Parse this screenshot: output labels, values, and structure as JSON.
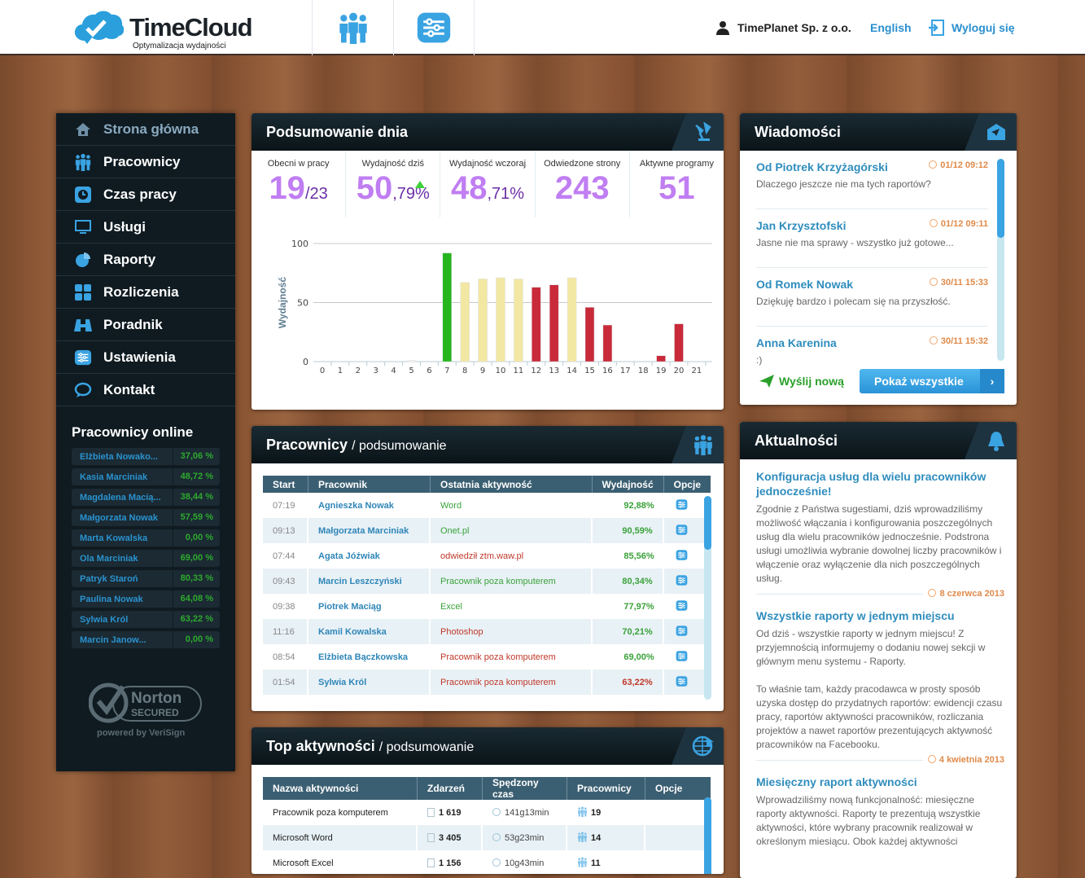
{
  "header": {
    "logo_title": "TimeCloud",
    "logo_subtitle": "Optymalizacja wydajności",
    "company": "TimePlanet Sp. z o.o.",
    "language": "English",
    "logout": "Wyloguj się"
  },
  "sidebar": {
    "items": [
      {
        "label": "Strona główna",
        "icon": "home-icon"
      },
      {
        "label": "Pracownicy",
        "icon": "people-icon"
      },
      {
        "label": "Czas pracy",
        "icon": "clock-icon"
      },
      {
        "label": "Usługi",
        "icon": "monitor-icon"
      },
      {
        "label": "Raporty",
        "icon": "pie-chart-icon"
      },
      {
        "label": "Rozliczenia",
        "icon": "calculator-icon"
      },
      {
        "label": "Poradnik",
        "icon": "binoculars-icon"
      },
      {
        "label": "Ustawienia",
        "icon": "sliders-icon"
      },
      {
        "label": "Kontakt",
        "icon": "chat-icon"
      }
    ],
    "online_title": "Pracownicy online",
    "online": [
      {
        "name": "Elżbieta Nowako...",
        "value": "37,06 %"
      },
      {
        "name": "Kasia Marciniak",
        "value": "48,72 %"
      },
      {
        "name": "Magdalena Macią...",
        "value": "38,44 %"
      },
      {
        "name": "Małgorzata Nowak",
        "value": "57,59 %"
      },
      {
        "name": "Marta Kowalska",
        "value": "0,00 %"
      },
      {
        "name": "Ola Marciniak",
        "value": "69,00 %"
      },
      {
        "name": "Patryk Staroń",
        "value": "80,33 %"
      },
      {
        "name": "Paulina Nowak",
        "value": "64,08 %"
      },
      {
        "name": "Sylwia Król",
        "value": "63,22 %"
      },
      {
        "name": "Marcin Janow...",
        "value": "0,00 %"
      }
    ],
    "norton": "Norton SECURED powered by VeriSign"
  },
  "summary": {
    "title": "Podsumowanie dnia",
    "stats": [
      {
        "label": "Obecni w pracy",
        "big": "19",
        "small": "/23"
      },
      {
        "label": "Wydajność dziś",
        "big": "50",
        "small": ",79%"
      },
      {
        "label": "Wydajność wczoraj",
        "big": "48",
        "small": ",71%"
      },
      {
        "label": "Odwiedzone strony",
        "big": "243",
        "small": ""
      },
      {
        "label": "Aktywne programy",
        "big": "51",
        "small": ""
      }
    ]
  },
  "chart_data": {
    "type": "bar",
    "ylabel": "Wydajność",
    "xlabel": "",
    "ylim": [
      0,
      100
    ],
    "yticks": [
      "0",
      "50",
      "100"
    ],
    "grid": true,
    "categories": [
      "0",
      "1",
      "2",
      "3",
      "4",
      "5",
      "6",
      "7",
      "8",
      "9",
      "10",
      "11",
      "12",
      "13",
      "14",
      "15",
      "16",
      "17",
      "18",
      "19",
      "20",
      "21"
    ],
    "values": [
      0,
      0,
      0,
      0,
      0,
      1,
      0,
      92,
      67,
      70,
      71,
      70,
      63,
      65,
      71,
      46,
      31,
      0,
      0,
      5,
      32,
      0
    ],
    "colors": [
      "#fff",
      "#fff",
      "#fff",
      "#fff",
      "#fff",
      "#f4f4f4",
      "#fff",
      "#25b51e",
      "#f3e8a3",
      "#f3e8a3",
      "#f3e8a3",
      "#f3e8a3",
      "#c82a3a",
      "#c82a3a",
      "#f3e8a3",
      "#c82a3a",
      "#c82a3a",
      "#fff",
      "#fff",
      "#c82a3a",
      "#c82a3a",
      "#fff"
    ]
  },
  "employees": {
    "title": "Pracownicy",
    "subtitle": "/ podsumowanie",
    "columns": [
      "Start",
      "Pracownik",
      "Ostatnia aktywność",
      "Wydajność",
      "Opcje"
    ],
    "rows": [
      {
        "start": "07:19",
        "name": "Agnieszka Nowak",
        "activity": "Word",
        "perf": "92,88%",
        "good": true
      },
      {
        "start": "09:13",
        "name": "Małgorzata Marciniak",
        "activity": "Onet.pl",
        "perf": "90,59%",
        "good": true
      },
      {
        "start": "07:44",
        "name": "Agata Jóźwiak",
        "activity": "odwiedził ztm.waw.pl",
        "perf": "85,56%",
        "good": false
      },
      {
        "start": "09:43",
        "name": "Marcin Leszczyński",
        "activity": "Pracownik poza komputerem",
        "perf": "80,34%",
        "good": true
      },
      {
        "start": "09:38",
        "name": "Piotrek Maciąg",
        "activity": "Excel",
        "perf": "77,97%",
        "good": true
      },
      {
        "start": "11:16",
        "name": "Kamil Kowalska",
        "activity": "Photoshop",
        "perf": "70,21%",
        "good": false
      },
      {
        "start": "08:54",
        "name": "Elżbieta Bączkowska",
        "activity": "Pracownik poza komputerem",
        "perf": "69,00%",
        "good": false
      },
      {
        "start": "01:54",
        "name": "Sylwia Król",
        "activity": "Pracownik poza komputerem",
        "perf": "63,22%",
        "good": false
      }
    ]
  },
  "top": {
    "title": "Top aktywności",
    "subtitle": "/ podsumowanie",
    "columns": [
      "Nazwa aktywności",
      "Zdarzeń",
      "Spędzony czas",
      "Pracownicy",
      "Opcje"
    ],
    "rows": [
      {
        "name": "Pracownik poza komputerem",
        "events": "1 619",
        "time": "141g13min",
        "people": "19"
      },
      {
        "name": "Microsoft Word",
        "events": "3 405",
        "time": "53g23min",
        "people": "14"
      },
      {
        "name": "Microsoft Excel",
        "events": "1 156",
        "time": "10g43min",
        "people": "11"
      }
    ]
  },
  "messages": {
    "title": "Wiadomości",
    "items": [
      {
        "from": "Od Piotrek Krzyżagórski",
        "time": "01/12 09:12",
        "text": "Dlaczego jeszcze nie ma tych raportów?"
      },
      {
        "from": "Jan Krzysztofski",
        "time": "01/12 09:11",
        "text": "Jasne nie ma sprawy - wszystko już gotowe..."
      },
      {
        "from": "Od Romek Nowak",
        "time": "30/11 15:33",
        "text": "Dziękuję bardzo i polecam się na przyszłość."
      },
      {
        "from": "Anna Karenina",
        "time": "30/11 15:32",
        "text": ":)"
      }
    ],
    "send_new": "Wyślij nową",
    "show_all": "Pokaż wszystkie"
  },
  "news": {
    "title": "Aktualności",
    "items": [
      {
        "title": "Konfiguracja usług dla wielu pracowników jednocześnie!",
        "body": "Zgodnie z Państwa sugestiami, dziś wprowadziliśmy możliwość włączania i konfigurowania poszczególnych usług dla wielu pracowników jednocześnie. Podstrona usługi umożliwia wybranie dowolnej liczby pracowników i włączenie oraz wyłączenie dla nich poszczególnych usług.",
        "body2": "",
        "date": "8 czerwca 2013"
      },
      {
        "title": "Wszystkie raporty w jednym miejscu",
        "body": "Od dziś - wszystkie raporty w jednym miejscu! Z przyjemnością informujemy o dodaniu nowej sekcji w głównym menu systemu - Raporty.",
        "body2": "To właśnie tam, każdy pracodawca w prosty sposób uzyska dostęp do przydatnych raportów: ewidencji czasu pracy, raportów aktywności pracowników, rozliczania projektów a nawet raportów prezentujących aktywność pracowników na Facebooku.",
        "date": "4 kwietnia 2013"
      },
      {
        "title": "Miesięczny raport aktywności",
        "body": "Wprowadziliśmy nową funkcjonalność: miesięczne raporty aktywności. Raporty te prezentują wszystkie aktywności, które wybrany pracownik realizował w określonym miesiącu. Obok każdej aktywności",
        "body2": "",
        "date": ""
      }
    ]
  }
}
